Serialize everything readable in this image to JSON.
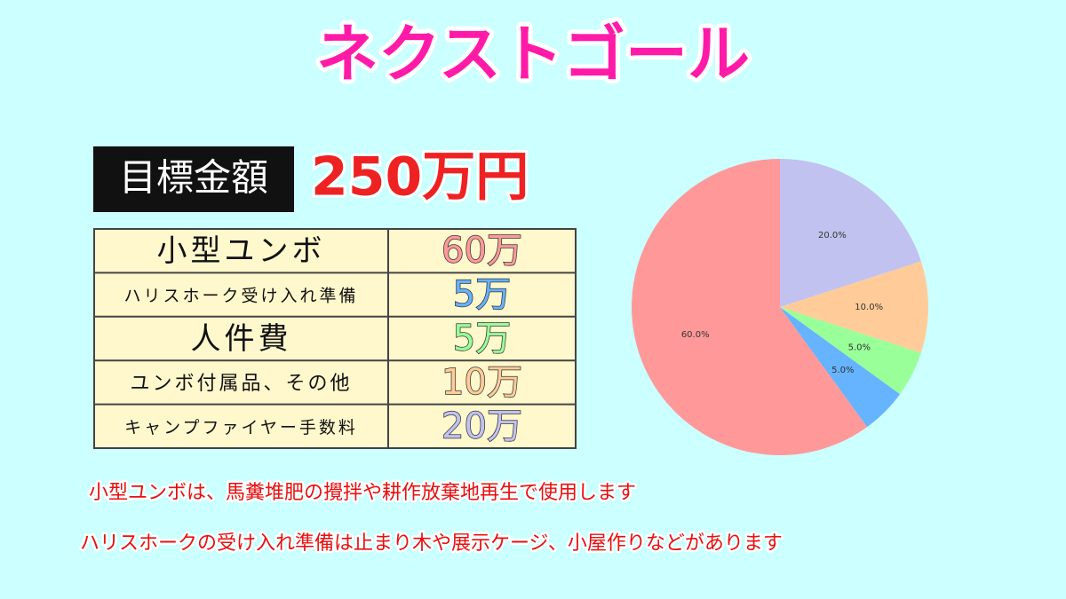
{
  "header": {
    "title": "ネクストゴール",
    "goal_label": "目標金額",
    "goal_amount": "250万円"
  },
  "table": {
    "rows": [
      [
        "小型ユンボ",
        "60万"
      ],
      [
        "ハリスホーク受け入れ準備",
        "5万"
      ],
      [
        "人件費",
        "5万"
      ],
      [
        "ユンボ付属品、その他",
        "10万"
      ],
      [
        "キャンプファイヤー手数料",
        "20万"
      ]
    ]
  },
  "notes": [
    "小型ユンボは、馬糞堆肥の攪拌や耕作放棄地再生で使用します",
    "ハリスホークの受け入れ準備は止まり木や展示ケージ、小屋作りなどがあります"
  ],
  "chart_data": {
    "type": "pie",
    "values": [
      60,
      5,
      5,
      10,
      20
    ],
    "value_labels": [
      "60.0%",
      "5.0%",
      "5.0%",
      "10.0%",
      "20.0%"
    ],
    "colors": [
      "#ff9999",
      "#66b3ff",
      "#99ff99",
      "#ffcc99",
      "#c2c2f0"
    ]
  }
}
